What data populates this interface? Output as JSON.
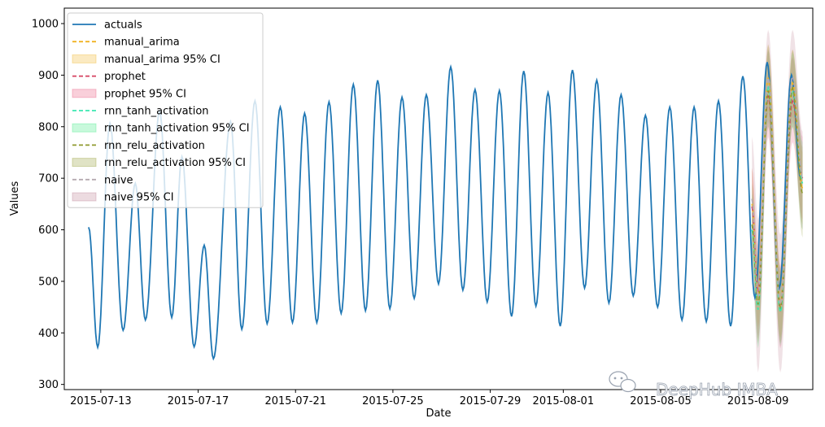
{
  "chart_data": {
    "type": "line",
    "title": "",
    "xlabel": "Date",
    "ylabel": "Values",
    "ylim": [
      290,
      1030
    ],
    "yticks": [
      300,
      400,
      500,
      600,
      700,
      800,
      900,
      1000
    ],
    "xticks": [
      {
        "date": "2015-07-13",
        "label": "2015-07-13"
      },
      {
        "date": "2015-07-17",
        "label": "2015-07-17"
      },
      {
        "date": "2015-07-21",
        "label": "2015-07-21"
      },
      {
        "date": "2015-07-25",
        "label": "2015-07-25"
      },
      {
        "date": "2015-07-29",
        "label": "2015-07-29"
      },
      {
        "date": "2015-08-01",
        "label": "2015-08-01"
      },
      {
        "date": "2015-08-05",
        "label": "2015-08-05"
      },
      {
        "date": "2015-08-09",
        "label": "2015-08-09"
      }
    ],
    "xlim": [
      "2015-07-11T12:00",
      "2015-08-11T06:00"
    ],
    "grid": false,
    "legend_position": "top-left",
    "series": [
      {
        "name": "actuals",
        "color": "#1f77b4",
        "style": "solid",
        "points": [
          [
            "2015-07-12T12:00",
            605
          ],
          [
            "2015-07-12T21:00",
            372
          ],
          [
            "2015-07-13T09:00",
            807
          ],
          [
            "2015-07-13T22:00",
            405
          ],
          [
            "2015-07-14T10:00",
            690
          ],
          [
            "2015-07-14T20:00",
            425
          ],
          [
            "2015-07-15T10:00",
            830
          ],
          [
            "2015-07-15T22:00",
            430
          ],
          [
            "2015-07-16T08:00",
            742
          ],
          [
            "2015-07-16T20:00",
            373
          ],
          [
            "2015-07-17T06:00",
            570
          ],
          [
            "2015-07-17T15:00",
            350
          ],
          [
            "2015-07-18T08:00",
            810
          ],
          [
            "2015-07-18T19:00",
            407
          ],
          [
            "2015-07-19T08:00",
            850
          ],
          [
            "2015-07-19T20:00",
            418
          ],
          [
            "2015-07-20T09:00",
            838
          ],
          [
            "2015-07-20T21:00",
            420
          ],
          [
            "2015-07-21T09:00",
            826
          ],
          [
            "2015-07-21T21:00",
            420
          ],
          [
            "2015-07-22T09:00",
            848
          ],
          [
            "2015-07-22T21:00",
            438
          ],
          [
            "2015-07-23T09:00",
            882
          ],
          [
            "2015-07-23T21:00",
            443
          ],
          [
            "2015-07-24T09:00",
            890
          ],
          [
            "2015-07-24T21:00",
            447
          ],
          [
            "2015-07-25T09:00",
            857
          ],
          [
            "2015-07-25T21:00",
            467
          ],
          [
            "2015-07-26T09:00",
            862
          ],
          [
            "2015-07-26T21:00",
            495
          ],
          [
            "2015-07-27T09:00",
            916
          ],
          [
            "2015-07-27T21:00",
            483
          ],
          [
            "2015-07-28T09:00",
            872
          ],
          [
            "2015-07-28T21:00",
            460
          ],
          [
            "2015-07-29T09:00",
            870
          ],
          [
            "2015-07-29T21:00",
            432
          ],
          [
            "2015-07-30T09:00",
            908
          ],
          [
            "2015-07-30T21:00",
            452
          ],
          [
            "2015-07-31T09:00",
            866
          ],
          [
            "2015-07-31T21:00",
            413
          ],
          [
            "2015-08-01T09:00",
            910
          ],
          [
            "2015-08-01T21:00",
            487
          ],
          [
            "2015-08-02T09:00",
            890
          ],
          [
            "2015-08-02T21:00",
            458
          ],
          [
            "2015-08-03T09:00",
            862
          ],
          [
            "2015-08-03T21:00",
            472
          ],
          [
            "2015-08-04T09:00",
            822
          ],
          [
            "2015-08-04T21:00",
            450
          ],
          [
            "2015-08-05T09:00",
            838
          ],
          [
            "2015-08-05T21:00",
            425
          ],
          [
            "2015-08-06T09:00",
            838
          ],
          [
            "2015-08-06T21:00",
            422
          ],
          [
            "2015-08-07T09:00",
            850
          ],
          [
            "2015-08-07T21:00",
            413
          ],
          [
            "2015-08-08T09:00",
            898
          ],
          [
            "2015-08-08T21:00",
            468
          ],
          [
            "2015-08-09T09:00",
            925
          ],
          [
            "2015-08-09T21:00",
            487
          ],
          [
            "2015-08-10T09:00",
            900
          ],
          [
            "2015-08-10T18:00",
            700
          ]
        ]
      },
      {
        "name": "manual_arima",
        "color": "#f0b323",
        "style": "dashed",
        "points": [
          [
            "2015-08-08T18:00",
            650
          ],
          [
            "2015-08-09T00:00",
            475
          ],
          [
            "2015-08-09T10:00",
            895
          ],
          [
            "2015-08-09T22:00",
            455
          ],
          [
            "2015-08-10T10:00",
            885
          ],
          [
            "2015-08-10T20:00",
            680
          ]
        ]
      },
      {
        "name": "manual_arima 95% CI",
        "color": "#f0b323",
        "style": "band",
        "lower": [
          [
            "2015-08-08T18:00",
            590
          ],
          [
            "2015-08-09T00:00",
            410
          ],
          [
            "2015-08-09T10:00",
            830
          ],
          [
            "2015-08-09T22:00",
            390
          ],
          [
            "2015-08-10T10:00",
            820
          ],
          [
            "2015-08-10T20:00",
            610
          ]
        ],
        "upper": [
          [
            "2015-08-08T18:00",
            720
          ],
          [
            "2015-08-09T00:00",
            540
          ],
          [
            "2015-08-09T10:00",
            960
          ],
          [
            "2015-08-09T22:00",
            520
          ],
          [
            "2015-08-10T10:00",
            950
          ],
          [
            "2015-08-10T20:00",
            750
          ]
        ]
      },
      {
        "name": "prophet",
        "color": "#d6405f",
        "style": "dashed",
        "points": [
          [
            "2015-08-08T18:00",
            645
          ],
          [
            "2015-08-09T00:00",
            480
          ],
          [
            "2015-08-09T10:00",
            860
          ],
          [
            "2015-08-09T22:00",
            445
          ],
          [
            "2015-08-10T10:00",
            850
          ],
          [
            "2015-08-10T20:00",
            700
          ]
        ]
      },
      {
        "name": "prophet 95% CI",
        "color": "#e8547a",
        "style": "band",
        "lower": [
          [
            "2015-08-08T18:00",
            560
          ],
          [
            "2015-08-09T00:00",
            390
          ],
          [
            "2015-08-09T10:00",
            780
          ],
          [
            "2015-08-09T22:00",
            370
          ],
          [
            "2015-08-10T10:00",
            770
          ],
          [
            "2015-08-10T20:00",
            620
          ]
        ],
        "upper": [
          [
            "2015-08-08T18:00",
            720
          ],
          [
            "2015-08-09T00:00",
            570
          ],
          [
            "2015-08-09T10:00",
            950
          ],
          [
            "2015-08-09T22:00",
            530
          ],
          [
            "2015-08-10T10:00",
            935
          ],
          [
            "2015-08-10T20:00",
            780
          ]
        ]
      },
      {
        "name": "rnn_tanh_activation",
        "color": "#3be8b0",
        "style": "dashed",
        "points": [
          [
            "2015-08-08T18:00",
            600
          ],
          [
            "2015-08-09T00:00",
            445
          ],
          [
            "2015-08-09T10:00",
            880
          ],
          [
            "2015-08-09T22:00",
            440
          ],
          [
            "2015-08-10T10:00",
            870
          ],
          [
            "2015-08-10T20:00",
            690
          ]
        ]
      },
      {
        "name": "rnn_tanh_activation 95% CI",
        "color": "#3be880",
        "style": "band",
        "lower": [
          [
            "2015-08-08T18:00",
            530
          ],
          [
            "2015-08-09T00:00",
            370
          ],
          [
            "2015-08-09T10:00",
            810
          ],
          [
            "2015-08-09T22:00",
            375
          ],
          [
            "2015-08-10T10:00",
            800
          ],
          [
            "2015-08-10T20:00",
            600
          ]
        ],
        "upper": [
          [
            "2015-08-08T18:00",
            670
          ],
          [
            "2015-08-09T00:00",
            530
          ],
          [
            "2015-08-09T10:00",
            950
          ],
          [
            "2015-08-09T22:00",
            515
          ],
          [
            "2015-08-10T10:00",
            945
          ],
          [
            "2015-08-10T20:00",
            770
          ]
        ]
      },
      {
        "name": "rnn_relu_activation",
        "color": "#8f9a2f",
        "style": "dashed",
        "points": [
          [
            "2015-08-08T18:00",
            610
          ],
          [
            "2015-08-09T00:00",
            455
          ],
          [
            "2015-08-09T10:00",
            870
          ],
          [
            "2015-08-09T22:00",
            450
          ],
          [
            "2015-08-10T10:00",
            875
          ],
          [
            "2015-08-10T20:00",
            670
          ]
        ]
      },
      {
        "name": "rnn_relu_activation 95% CI",
        "color": "#8f9a2f",
        "style": "band",
        "lower": [
          [
            "2015-08-08T18:00",
            535
          ],
          [
            "2015-08-09T00:00",
            380
          ],
          [
            "2015-08-09T10:00",
            800
          ],
          [
            "2015-08-09T22:00",
            380
          ],
          [
            "2015-08-10T10:00",
            800
          ],
          [
            "2015-08-10T20:00",
            585
          ]
        ],
        "upper": [
          [
            "2015-08-08T18:00",
            690
          ],
          [
            "2015-08-09T00:00",
            540
          ],
          [
            "2015-08-09T10:00",
            960
          ],
          [
            "2015-08-09T22:00",
            525
          ],
          [
            "2015-08-10T10:00",
            950
          ],
          [
            "2015-08-10T20:00",
            760
          ]
        ]
      },
      {
        "name": "naive",
        "color": "#b5aab0",
        "style": "dashed",
        "points": [
          [
            "2015-08-08T18:00",
            660
          ],
          [
            "2015-08-09T00:00",
            470
          ],
          [
            "2015-08-09T10:00",
            895
          ],
          [
            "2015-08-09T22:00",
            455
          ],
          [
            "2015-08-10T10:00",
            898
          ],
          [
            "2015-08-10T20:00",
            700
          ]
        ]
      },
      {
        "name": "naive 95% CI",
        "color": "#b97c8e",
        "style": "band",
        "lower": [
          [
            "2015-08-08T18:00",
            550
          ],
          [
            "2015-08-09T00:00",
            323
          ],
          [
            "2015-08-09T10:00",
            800
          ],
          [
            "2015-08-09T22:00",
            323
          ],
          [
            "2015-08-10T10:00",
            810
          ],
          [
            "2015-08-10T20:00",
            600
          ]
        ],
        "upper": [
          [
            "2015-08-08T18:00",
            780
          ],
          [
            "2015-08-09T00:00",
            620
          ],
          [
            "2015-08-09T10:00",
            988
          ],
          [
            "2015-08-09T22:00",
            590
          ],
          [
            "2015-08-10T10:00",
            988
          ],
          [
            "2015-08-10T20:00",
            790
          ]
        ]
      }
    ]
  },
  "watermark": {
    "text": "DeepHub IMBA",
    "icon": "wechat-icon"
  }
}
